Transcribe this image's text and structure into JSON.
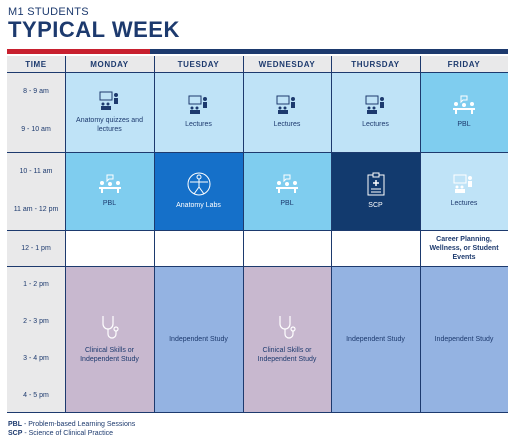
{
  "header": {
    "subtitle": "M1 STUDENTS",
    "title": "TYPICAL WEEK"
  },
  "columns": [
    "TIME",
    "MONDAY",
    "TUESDAY",
    "WEDNESDAY",
    "THURSDAY",
    "FRIDAY"
  ],
  "times": [
    "8 - 9 am",
    "9 - 10 am",
    "10 - 11 am",
    "11 am - 12 pm",
    "12 - 1 pm",
    "1 - 2 pm",
    "2 - 3 pm",
    "3 - 4 pm",
    "4 - 5 pm"
  ],
  "blocks": {
    "mon_morning": "Anatomy quizzes and lectures",
    "tue_morning": "Lectures",
    "wed_morning": "Lectures",
    "thu_morning": "Lectures",
    "fri_morning": "PBL",
    "mon_late": "PBL",
    "tue_late": "Anatomy Labs",
    "wed_late": "PBL",
    "thu_late": "SCP",
    "fri_late": "Lectures",
    "fri_noon": "Career Planning, Wellness, or Student Events",
    "mon_afternoon": "Clinical Skills or Independent Study",
    "tue_afternoon": "Independent Study",
    "wed_afternoon": "Clinical Skills or Independent Study",
    "thu_afternoon": "Independent Study",
    "fri_afternoon": "Independent Study"
  },
  "footer": {
    "pbl_abbr": "PBL",
    "pbl_text": " - Problem-based Learning Sessions",
    "scp_abbr": "SCP",
    "scp_text": " - Science of Clinical Practice"
  },
  "colors": {
    "light_blue": "#bfe3f7",
    "mid_blue": "#7fcdef",
    "bright_blue": "#1570c9",
    "navy": "#123a6e",
    "mauve": "#c8b8cf",
    "periwinkle": "#94b3e2",
    "header_gray": "#e9e9ea"
  },
  "icons": {
    "lecture": "lecture-icon",
    "group": "group-discussion-icon",
    "anatomy": "vitruvian-man-icon",
    "clipboard": "medical-clipboard-icon",
    "stethoscope": "stethoscope-icon"
  }
}
